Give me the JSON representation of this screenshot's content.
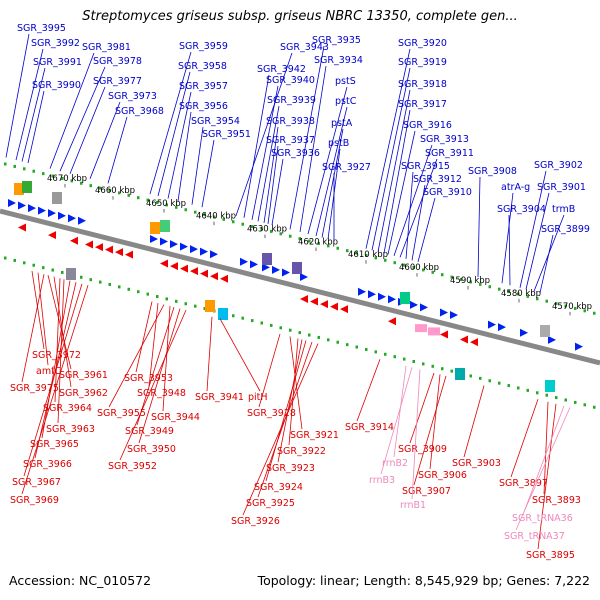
{
  "title": "Streptomyces griseus subsp. griseus NBRC 13350, complete gen...",
  "footer": {
    "accession": "Accession: NC_010572",
    "summary": "Topology: linear; Length: 8,545,929 bp; Genes: 7,222"
  },
  "colors": {
    "upper_label": "#0000cc",
    "lower_label": "#dd0000",
    "rna_label": "#ee88bb",
    "gene_fwd": "#0022ee",
    "gene_rev": "#ee0000",
    "rna_gene": "#ff99cc",
    "backbone": "#888888",
    "tick": "#22aa22"
  },
  "scale": [
    {
      "label": "4670 kbp",
      "kbp": 4670
    },
    {
      "label": "4660 kbp",
      "kbp": 4660
    },
    {
      "label": "4650 kbp",
      "kbp": 4650
    },
    {
      "label": "4640 kbp",
      "kbp": 4640
    },
    {
      "label": "4630 kbp",
      "kbp": 4630
    },
    {
      "label": "4620 kbp",
      "kbp": 4620
    },
    {
      "label": "4610 kbp",
      "kbp": 4610
    },
    {
      "label": "4600 kbp",
      "kbp": 4600
    },
    {
      "label": "4590 kbp",
      "kbp": 4590
    },
    {
      "label": "4580 kbp",
      "kbp": 4580
    },
    {
      "label": "4570 kbp",
      "kbp": 4570
    }
  ],
  "upper_genes": [
    "SGR_3995",
    "SGR_3992",
    "SGR_3991",
    "SGR_3990",
    "SGR_3981",
    "SGR_3978",
    "SGR_3977",
    "SGR_3973",
    "SGR_3968",
    "SGR_3959",
    "SGR_3958",
    "SGR_3957",
    "SGR_3956",
    "SGR_3954",
    "SGR_3951",
    "SGR_3943",
    "SGR_3942",
    "SGR_3940",
    "SGR_3939",
    "SGR_3938",
    "SGR_3937",
    "SGR_3936",
    "SGR_3935",
    "SGR_3934",
    "pstS",
    "pstC",
    "pstA",
    "pstB",
    "SGR_3927",
    "SGR_3920",
    "SGR_3919",
    "SGR_3918",
    "SGR_3917",
    "SGR_3916",
    "SGR_3913",
    "SGR_3911",
    "SGR_3915",
    "SGR_3912",
    "SGR_3910",
    "SGR_3908",
    "atrA-g",
    "SGR_3904",
    "SGR_3902",
    "SGR_3901",
    "trmB",
    "SGR_3899"
  ],
  "lower_genes": [
    "SGR_3972",
    "amfC",
    "SGR_3975",
    "SGR_3961",
    "SGR_3962",
    "SGR_3964",
    "SGR_3963",
    "SGR_3965",
    "SGR_3966",
    "SGR_3967",
    "SGR_3969",
    "SGR_3953",
    "SGR_3948",
    "SGR_3955",
    "SGR_3944",
    "SGR_3949",
    "SGR_3950",
    "SGR_3952",
    "SGR_3941",
    "pitH",
    "SGR_3928",
    "SGR_3921",
    "SGR_3922",
    "SGR_3923",
    "SGR_3924",
    "SGR_3925",
    "SGR_3926",
    "SGR_3914",
    "SGR_3909",
    "SGR_3906",
    "SGR_3907",
    "SGR_3903",
    "SGR_3897",
    "SGR_3893",
    "SGR_3895"
  ],
  "rna_genes": [
    "rrnB2",
    "rrnB3",
    "rrnB1",
    "SGR_tRNA36",
    "SGR_tRNA37"
  ]
}
